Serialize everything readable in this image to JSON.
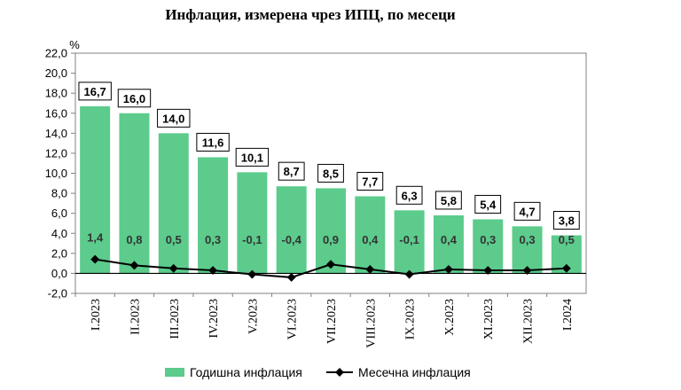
{
  "chart_data": {
    "type": "bar",
    "title": "Инфлация, измерена чрез ИПЦ, по месеци",
    "ylabel": "%",
    "ylim": [
      -2.0,
      22.0
    ],
    "ytick_step": 2.0,
    "yticks": [
      "-2,0",
      "0,0",
      "2,0",
      "4,0",
      "6,0",
      "8,0",
      "10,0",
      "12,0",
      "14,0",
      "16,0",
      "18,0",
      "20,0",
      "22,0"
    ],
    "categories": [
      "I.2023",
      "II.2023",
      "III.2023",
      "IV.2023",
      "V.2023",
      "VI.2023",
      "VII.2023",
      "VIII.2023",
      "IX.2023",
      "X.2023",
      "XI.2023",
      "XII.2023",
      "I.2024"
    ],
    "series": [
      {
        "name": "Годишна инфлация",
        "kind": "bar",
        "color": "#5CCB8C",
        "values": [
          16.7,
          16.0,
          14.0,
          11.6,
          10.1,
          8.7,
          8.5,
          7.7,
          6.3,
          5.8,
          5.4,
          4.7,
          3.8
        ],
        "labels": [
          "16,7",
          "16,0",
          "14,0",
          "11,6",
          "10,1",
          "8,7",
          "8,5",
          "7,7",
          "6,3",
          "5,8",
          "5,4",
          "4,7",
          "3,8"
        ]
      },
      {
        "name": "Месечна инфлация",
        "kind": "line",
        "color": "#000000",
        "values": [
          1.4,
          0.8,
          0.5,
          0.3,
          -0.1,
          -0.4,
          0.9,
          0.4,
          -0.1,
          0.4,
          0.3,
          0.3,
          0.5
        ],
        "labels": [
          "1,4",
          "0,8",
          "0,5",
          "0,3",
          "-0,1",
          "-0,4",
          "0,9",
          "0,4",
          "-0,1",
          "0,4",
          "0,3",
          "0,3",
          "0,5"
        ]
      }
    ],
    "grid": false,
    "legend": "bottom"
  }
}
